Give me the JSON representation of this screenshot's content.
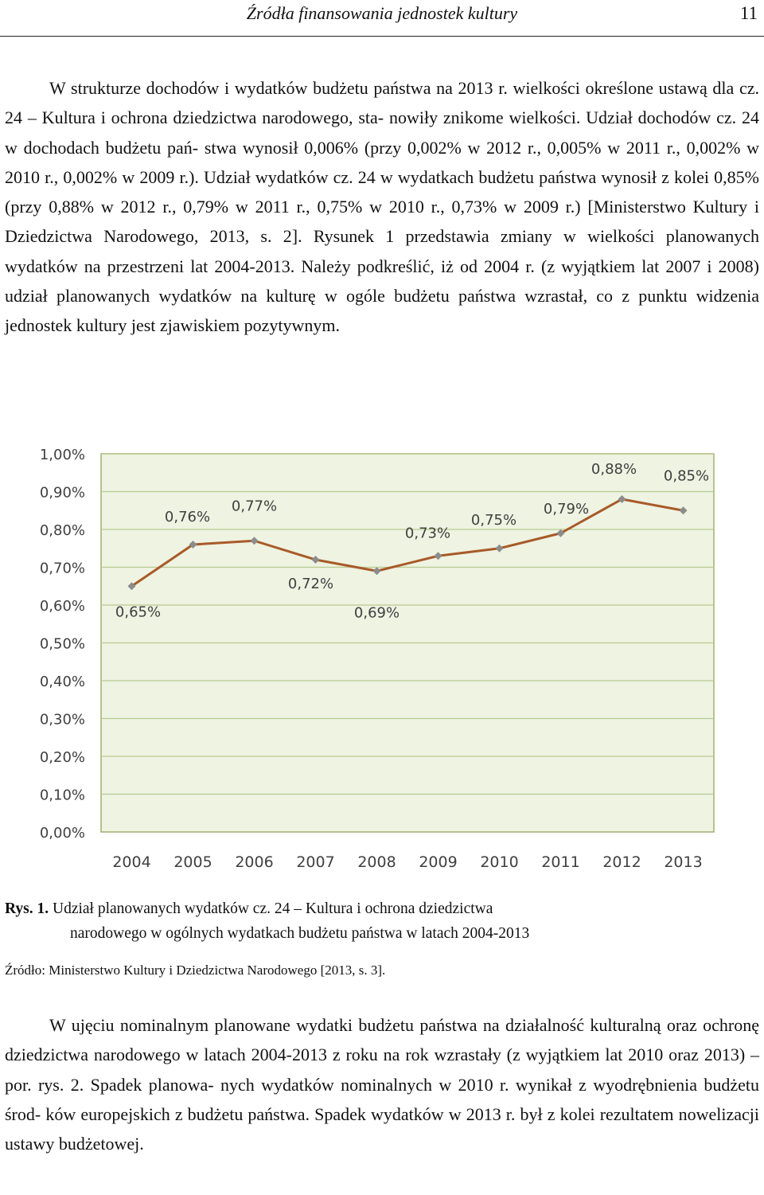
{
  "header": {
    "running_title": "Źródła finansowania jednostek kultury",
    "page_number": "11"
  },
  "paragraph1": {
    "lines": [
      "W strukturze dochodów i wydatków budżetu państwa na 2013 r. wielkości",
      "określone ustawą dla cz. 24 – Kultura i ochrona dziedzictwa narodowego, sta-",
      "nowiły znikome wielkości. Udział dochodów cz. 24 w dochodach budżetu pań-",
      "stwa wynosił 0,006% (przy 0,002% w 2012 r., 0,005% w 2011 r., 0,002%",
      "w 2010 r., 0,002% w 2009 r.). Udział wydatków cz. 24 w wydatkach budżetu",
      "państwa wynosił z kolei 0,85% (przy 0,88% w 2012 r., 0,79% w 2011 r., 0,75%",
      "w 2010 r., 0,73% w 2009 r.) [Ministerstwo Kultury i Dziedzictwa Narodowego,",
      "2013, s. 2]. Rysunek 1 przedstawia zmiany w wielkości planowanych wydatków",
      "na przestrzeni lat 2004-2013. Należy podkreślić, iż od 2004 r. (z wyjątkiem lat",
      "2007 i 2008) udział planowanych wydatków na kulturę w ogóle budżetu państwa",
      "wzrastał, co z punktu widzenia jednostek kultury jest zjawiskiem pozytywnym."
    ]
  },
  "chart_data": {
    "type": "line",
    "categories": [
      "2004",
      "2005",
      "2006",
      "2007",
      "2008",
      "2009",
      "2010",
      "2011",
      "2012",
      "2013"
    ],
    "values": [
      0.65,
      0.76,
      0.77,
      0.72,
      0.69,
      0.73,
      0.75,
      0.79,
      0.88,
      0.85
    ],
    "data_labels": [
      "0,65%",
      "0,76%",
      "0,77%",
      "0,72%",
      "0,69%",
      "0,73%",
      "0,75%",
      "0,79%",
      "0,88%",
      "0,85%"
    ],
    "y_ticks": [
      "0,00%",
      "0,10%",
      "0,20%",
      "0,30%",
      "0,40%",
      "0,50%",
      "0,60%",
      "0,70%",
      "0,80%",
      "0,90%",
      "1,00%"
    ],
    "ylim": [
      0,
      1.0
    ],
    "grid": true,
    "legend": "none",
    "colors": {
      "plot_background": "#eef3e2",
      "gridline": "#b9c98f",
      "plot_border": "#9fb070",
      "line": "#a85a28",
      "marker": "#8c8c8c",
      "tick_text": "#404040"
    }
  },
  "caption": {
    "label": "Rys. 1.",
    "line1": "Udział planowanych wydatków cz. 24 – Kultura i ochrona dziedzictwa",
    "line2": "narodowego w ogólnych wydatkach budżetu państwa w latach 2004-2013"
  },
  "source": "Źródło: Ministerstwo Kultury i Dziedzictwa Narodowego [2013, s. 3].",
  "paragraph2": {
    "lines": [
      "W ujęciu nominalnym planowane wydatki budżetu państwa na działalność",
      "kulturalną oraz ochronę dziedzictwa narodowego w latach 2004-2013 z roku na",
      "rok wzrastały (z wyjątkiem lat 2010 oraz 2013) – por. rys. 2. Spadek planowa-",
      "nych wydatków nominalnych w 2010 r. wynikał z wyodrębnienia budżetu środ-",
      "ków europejskich z budżetu państwa. Spadek wydatków w 2013 r. był z kolei",
      "rezultatem nowelizacji ustawy budżetowej."
    ]
  }
}
